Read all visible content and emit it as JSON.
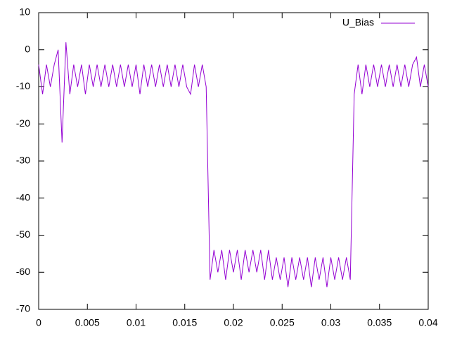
{
  "chart_data": {
    "type": "line",
    "x": [
      0,
      0.0004,
      0.0008,
      0.0012,
      0.0016,
      0.002,
      0.0024,
      0.0028,
      0.0032,
      0.0036,
      0.004,
      0.0044,
      0.0048,
      0.0052,
      0.0056,
      0.006,
      0.0064,
      0.0068,
      0.0072,
      0.0076,
      0.008,
      0.0084,
      0.0088,
      0.0092,
      0.0096,
      0.01,
      0.0104,
      0.0108,
      0.0112,
      0.0116,
      0.012,
      0.0124,
      0.0128,
      0.0132,
      0.0136,
      0.014,
      0.0144,
      0.0148,
      0.0152,
      0.0156,
      0.016,
      0.0164,
      0.0168,
      0.0172,
      0.0176,
      0.018,
      0.0184,
      0.0188,
      0.0192,
      0.0196,
      0.02,
      0.0204,
      0.0208,
      0.0212,
      0.0216,
      0.022,
      0.0224,
      0.0228,
      0.0232,
      0.0236,
      0.024,
      0.0244,
      0.0248,
      0.0252,
      0.0256,
      0.026,
      0.0264,
      0.0268,
      0.0272,
      0.0276,
      0.028,
      0.0284,
      0.0288,
      0.0292,
      0.0296,
      0.03,
      0.0304,
      0.0308,
      0.0312,
      0.0316,
      0.032,
      0.0324,
      0.0328,
      0.0332,
      0.0336,
      0.034,
      0.0344,
      0.0348,
      0.0352,
      0.0356,
      0.036,
      0.0364,
      0.0368,
      0.0372,
      0.0376,
      0.038,
      0.0384,
      0.0388,
      0.0392,
      0.0396,
      0.04
    ],
    "series": [
      {
        "name": "U_Bias",
        "color": "#9400d3",
        "values": [
          -4,
          -12,
          -4,
          -10,
          -4,
          0,
          -25,
          2,
          -12,
          -4,
          -10,
          -4,
          -12,
          -4,
          -10,
          -4,
          -10,
          -4,
          -10,
          -4,
          -10,
          -4,
          -10,
          -4,
          -10,
          -4,
          -12,
          -4,
          -10,
          -4,
          -10,
          -4,
          -10,
          -4,
          -10,
          -4,
          -10,
          -4,
          -10,
          -12,
          -4,
          -10,
          -4,
          -10,
          -62,
          -54,
          -60,
          -54,
          -62,
          -54,
          -60,
          -54,
          -62,
          -54,
          -60,
          -54,
          -60,
          -54,
          -62,
          -54,
          -62,
          -56,
          -62,
          -56,
          -64,
          -56,
          -62,
          -56,
          -62,
          -56,
          -64,
          -56,
          -62,
          -56,
          -64,
          -56,
          -62,
          -56,
          -62,
          -56,
          -62,
          -12,
          -4,
          -12,
          -4,
          -10,
          -4,
          -10,
          -4,
          -10,
          -4,
          -10,
          -4,
          -10,
          -4,
          -10,
          -4,
          -2,
          -10,
          -4,
          -10
        ]
      }
    ],
    "xlim": [
      0,
      0.04
    ],
    "xticks": [
      0,
      0.005,
      0.01,
      0.015,
      0.02,
      0.025,
      0.03,
      0.035,
      0.04
    ],
    "ylim": [
      -70,
      10
    ],
    "yticks": [
      -70,
      -60,
      -50,
      -40,
      -30,
      -20,
      -10,
      0,
      10
    ],
    "grid": false,
    "legend": "top-right"
  }
}
